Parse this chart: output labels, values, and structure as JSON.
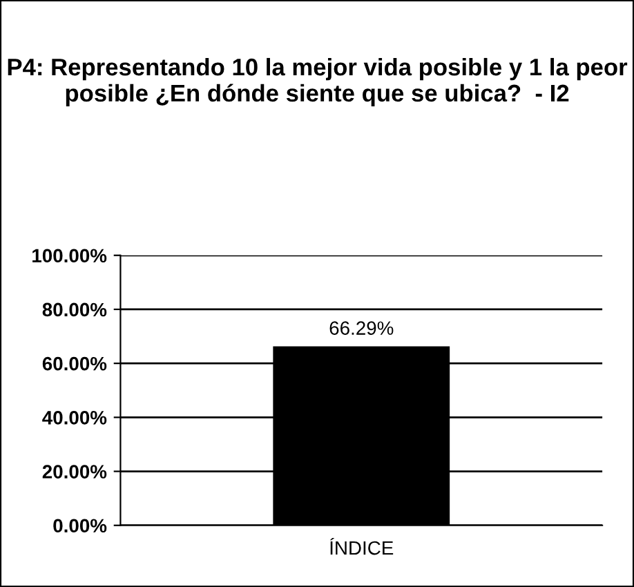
{
  "chart_data": {
    "type": "bar",
    "title": "P4: Representando 10 la mejor vida posible y 1 la peor posible ¿En dónde siente que se ubica?  - I2",
    "categories": [
      "ÍNDICE"
    ],
    "values": [
      66.29
    ],
    "value_labels": [
      "66.29%"
    ],
    "color": "#000000",
    "ylim": [
      0,
      100
    ],
    "yticks": [
      {
        "value": 0,
        "label": "0.00%"
      },
      {
        "value": 20,
        "label": "20.00%"
      },
      {
        "value": 40,
        "label": "40.00%"
      },
      {
        "value": 60,
        "label": "60.00%"
      },
      {
        "value": 80,
        "label": "80.00%"
      },
      {
        "value": 100,
        "label": "100.00%"
      }
    ],
    "grid": "y"
  }
}
